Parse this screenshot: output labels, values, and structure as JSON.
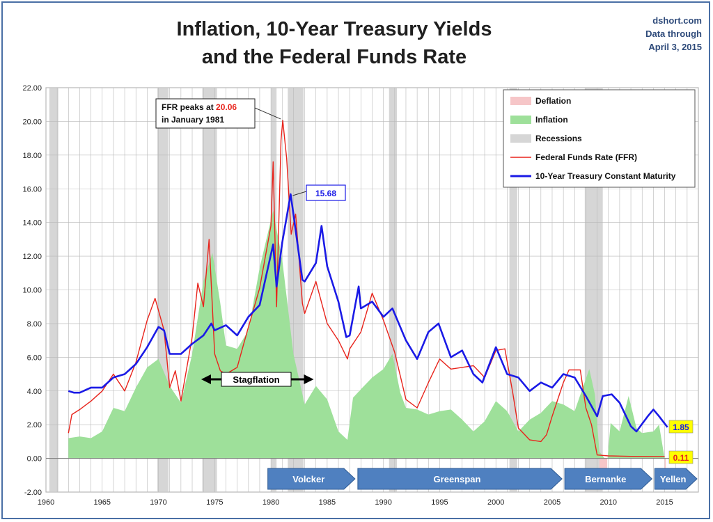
{
  "title_line1": "Inflation, 10-Year Treasury Yields",
  "title_line2": "and the Federal Funds Rate",
  "source": {
    "site": "dshort.com",
    "line2": "Data through",
    "line3": "April 3, 2015"
  },
  "colors": {
    "ffr": "#e8241c",
    "treasury": "#1a1ae6",
    "inflation": "#9ee09a",
    "deflation": "#f6c6c8",
    "recession": "#d6d6d6",
    "arrow": "#4f80c0"
  },
  "chart_data": {
    "type": "line",
    "xlim": [
      1960,
      2018
    ],
    "ylim": [
      -2,
      22
    ],
    "grid": true,
    "x_ticks": [
      "1960",
      "1965",
      "1970",
      "1975",
      "1980",
      "1985",
      "1990",
      "1995",
      "2000",
      "2005",
      "2010",
      "2015"
    ],
    "y_ticks": [
      "-2.00",
      "0.00",
      "2.00",
      "4.00",
      "6.00",
      "8.00",
      "10.00",
      "12.00",
      "14.00",
      "16.00",
      "18.00",
      "20.00",
      "22.00"
    ],
    "legend_position": "top-right",
    "legend": [
      {
        "label": "Deflation",
        "kind": "box",
        "color": "#f6c6c8"
      },
      {
        "label": "Inflation",
        "kind": "box",
        "color": "#9ee09a"
      },
      {
        "label": "Recessions",
        "kind": "box",
        "color": "#d6d6d6"
      },
      {
        "label": "Federal Funds Rate (FFR)",
        "kind": "line",
        "color": "#e8241c"
      },
      {
        "label": "10-Year Treasury Constant Maturity",
        "kind": "line",
        "color": "#1a1ae6"
      }
    ],
    "recessions": [
      [
        1960.3,
        1961.1
      ],
      [
        1969.9,
        1970.9
      ],
      [
        1973.9,
        1975.2
      ],
      [
        1980.0,
        1980.5
      ],
      [
        1981.5,
        1982.9
      ],
      [
        1990.5,
        1991.2
      ],
      [
        2001.2,
        2001.9
      ],
      [
        2007.9,
        2009.5
      ]
    ],
    "deflation": [
      [
        2009.2,
        2009.9
      ],
      [
        2015.0,
        2015.1
      ]
    ],
    "inflation": [
      [
        1962.0,
        1.2
      ],
      [
        1963.0,
        1.3
      ],
      [
        1964.0,
        1.2
      ],
      [
        1965.0,
        1.6
      ],
      [
        1966.0,
        3.0
      ],
      [
        1967.0,
        2.8
      ],
      [
        1968.0,
        4.2
      ],
      [
        1969.0,
        5.4
      ],
      [
        1970.0,
        5.9
      ],
      [
        1971.0,
        4.3
      ],
      [
        1972.0,
        3.3
      ],
      [
        1973.0,
        6.2
      ],
      [
        1974.0,
        10.5
      ],
      [
        1974.8,
        12.2
      ],
      [
        1975.5,
        9.2
      ],
      [
        1976.0,
        6.7
      ],
      [
        1977.0,
        6.5
      ],
      [
        1978.0,
        7.6
      ],
      [
        1979.0,
        11.3
      ],
      [
        1980.2,
        14.7
      ],
      [
        1981.0,
        11.8
      ],
      [
        1982.0,
        6.2
      ],
      [
        1983.0,
        3.2
      ],
      [
        1984.0,
        4.3
      ],
      [
        1985.0,
        3.5
      ],
      [
        1986.0,
        1.6
      ],
      [
        1986.8,
        1.1
      ],
      [
        1987.3,
        3.6
      ],
      [
        1988.0,
        4.1
      ],
      [
        1989.0,
        4.8
      ],
      [
        1990.0,
        5.3
      ],
      [
        1990.8,
        6.2
      ],
      [
        1991.5,
        3.9
      ],
      [
        1992.0,
        3.0
      ],
      [
        1993.0,
        2.9
      ],
      [
        1994.0,
        2.6
      ],
      [
        1995.0,
        2.8
      ],
      [
        1996.0,
        2.9
      ],
      [
        1997.0,
        2.3
      ],
      [
        1998.0,
        1.6
      ],
      [
        1999.0,
        2.2
      ],
      [
        2000.0,
        3.4
      ],
      [
        2001.0,
        2.8
      ],
      [
        2002.0,
        1.6
      ],
      [
        2003.0,
        2.3
      ],
      [
        2004.0,
        2.7
      ],
      [
        2005.0,
        3.4
      ],
      [
        2006.0,
        3.2
      ],
      [
        2007.0,
        2.8
      ],
      [
        2008.3,
        5.3
      ],
      [
        2008.8,
        3.8
      ],
      [
        2009.2,
        0.4
      ],
      [
        2009.9,
        -0.2
      ],
      [
        2010.2,
        2.1
      ],
      [
        2011.0,
        1.6
      ],
      [
        2011.8,
        3.7
      ],
      [
        2012.5,
        1.8
      ],
      [
        2013.0,
        1.5
      ],
      [
        2014.0,
        1.6
      ],
      [
        2014.5,
        2.0
      ],
      [
        2015.0,
        0.0
      ]
    ],
    "series": [
      {
        "name": "Federal Funds Rate (FFR)",
        "color": "#e8241c",
        "points": [
          [
            1962.0,
            1.5
          ],
          [
            1962.3,
            2.6
          ],
          [
            1963.0,
            2.9
          ],
          [
            1964.0,
            3.4
          ],
          [
            1965.0,
            4.0
          ],
          [
            1966.0,
            5.0
          ],
          [
            1967.0,
            4.0
          ],
          [
            1968.0,
            5.7
          ],
          [
            1969.0,
            8.2
          ],
          [
            1969.7,
            9.5
          ],
          [
            1970.5,
            7.6
          ],
          [
            1971.0,
            4.2
          ],
          [
            1971.5,
            5.2
          ],
          [
            1972.0,
            3.4
          ],
          [
            1973.0,
            7.2
          ],
          [
            1973.5,
            10.4
          ],
          [
            1974.0,
            9.0
          ],
          [
            1974.5,
            13.0
          ],
          [
            1975.0,
            6.2
          ],
          [
            1975.5,
            5.2
          ],
          [
            1976.0,
            5.0
          ],
          [
            1977.0,
            5.4
          ],
          [
            1978.0,
            7.8
          ],
          [
            1979.0,
            10.1
          ],
          [
            1980.0,
            13.8
          ],
          [
            1980.2,
            17.6
          ],
          [
            1980.5,
            9.0
          ],
          [
            1980.9,
            18.9
          ],
          [
            1981.05,
            20.06
          ],
          [
            1981.4,
            17.8
          ],
          [
            1981.8,
            13.3
          ],
          [
            1982.2,
            14.5
          ],
          [
            1982.8,
            9.2
          ],
          [
            1983.0,
            8.6
          ],
          [
            1984.0,
            10.5
          ],
          [
            1985.0,
            8.0
          ],
          [
            1986.0,
            7.0
          ],
          [
            1986.8,
            5.9
          ],
          [
            1987.0,
            6.5
          ],
          [
            1988.0,
            7.5
          ],
          [
            1989.0,
            9.8
          ],
          [
            1990.0,
            8.2
          ],
          [
            1991.0,
            6.3
          ],
          [
            1992.0,
            3.5
          ],
          [
            1993.0,
            3.0
          ],
          [
            1994.0,
            4.5
          ],
          [
            1995.0,
            5.9
          ],
          [
            1996.0,
            5.3
          ],
          [
            1998.0,
            5.5
          ],
          [
            1999.0,
            4.8
          ],
          [
            2000.0,
            6.4
          ],
          [
            2000.8,
            6.5
          ],
          [
            2001.5,
            3.9
          ],
          [
            2002.0,
            1.8
          ],
          [
            2003.0,
            1.1
          ],
          [
            2004.0,
            1.0
          ],
          [
            2004.5,
            1.4
          ],
          [
            2005.0,
            2.5
          ],
          [
            2006.0,
            4.5
          ],
          [
            2006.5,
            5.25
          ],
          [
            2007.5,
            5.25
          ],
          [
            2008.0,
            3.0
          ],
          [
            2008.5,
            2.0
          ],
          [
            2009.0,
            0.2
          ],
          [
            2010.0,
            0.15
          ],
          [
            2012.0,
            0.12
          ],
          [
            2015.0,
            0.11
          ]
        ]
      },
      {
        "name": "10-Year Treasury Constant Maturity",
        "color": "#1a1ae6",
        "points": [
          [
            1962.0,
            4.0
          ],
          [
            1962.5,
            3.9
          ],
          [
            1963.0,
            3.9
          ],
          [
            1964.0,
            4.2
          ],
          [
            1965.0,
            4.2
          ],
          [
            1966.0,
            4.8
          ],
          [
            1967.0,
            5.0
          ],
          [
            1968.0,
            5.6
          ],
          [
            1969.0,
            6.6
          ],
          [
            1970.0,
            7.8
          ],
          [
            1970.5,
            7.6
          ],
          [
            1971.0,
            6.2
          ],
          [
            1972.0,
            6.2
          ],
          [
            1973.0,
            6.8
          ],
          [
            1974.0,
            7.3
          ],
          [
            1974.7,
            8.0
          ],
          [
            1975.0,
            7.6
          ],
          [
            1976.0,
            7.9
          ],
          [
            1977.0,
            7.3
          ],
          [
            1978.0,
            8.4
          ],
          [
            1979.0,
            9.1
          ],
          [
            1980.2,
            12.7
          ],
          [
            1980.5,
            10.2
          ],
          [
            1981.0,
            12.8
          ],
          [
            1981.75,
            15.68
          ],
          [
            1982.0,
            14.5
          ],
          [
            1982.8,
            10.6
          ],
          [
            1983.0,
            10.5
          ],
          [
            1984.0,
            11.6
          ],
          [
            1984.5,
            13.8
          ],
          [
            1985.0,
            11.4
          ],
          [
            1986.0,
            9.3
          ],
          [
            1986.7,
            7.2
          ],
          [
            1987.0,
            7.3
          ],
          [
            1987.8,
            10.2
          ],
          [
            1988.0,
            8.9
          ],
          [
            1989.0,
            9.3
          ],
          [
            1990.0,
            8.4
          ],
          [
            1990.8,
            8.9
          ],
          [
            1992.0,
            7.0
          ],
          [
            1993.0,
            5.9
          ],
          [
            1994.0,
            7.5
          ],
          [
            1994.9,
            8.0
          ],
          [
            1996.0,
            6.0
          ],
          [
            1997.0,
            6.4
          ],
          [
            1998.0,
            5.0
          ],
          [
            1998.8,
            4.5
          ],
          [
            2000.0,
            6.6
          ],
          [
            2001.0,
            5.0
          ],
          [
            2002.0,
            4.8
          ],
          [
            2003.0,
            4.0
          ],
          [
            2004.0,
            4.5
          ],
          [
            2005.0,
            4.2
          ],
          [
            2006.0,
            5.0
          ],
          [
            2007.0,
            4.8
          ],
          [
            2008.0,
            3.7
          ],
          [
            2009.0,
            2.5
          ],
          [
            2009.5,
            3.7
          ],
          [
            2010.3,
            3.8
          ],
          [
            2011.0,
            3.3
          ],
          [
            2012.0,
            1.9
          ],
          [
            2012.5,
            1.6
          ],
          [
            2013.5,
            2.5
          ],
          [
            2014.0,
            2.9
          ],
          [
            2014.5,
            2.5
          ],
          [
            2015.25,
            1.85
          ]
        ]
      }
    ],
    "annotations": {
      "ffr_peak_prefix": "FFR peaks at ",
      "ffr_peak_value": "20.06",
      "ffr_peak_date": "in January 1981",
      "treasury_peak": "15.68",
      "stagflation": "Stagflation",
      "end_treasury": "1.85",
      "end_ffr": "0.11"
    },
    "chairs": [
      {
        "label": "Volcker",
        "start": 1979.6,
        "end": 1987.6
      },
      {
        "label": "Greenspan",
        "start": 1987.6,
        "end": 2006.0
      },
      {
        "label": "Bernanke",
        "start": 2006.0,
        "end": 2014.0
      },
      {
        "label": "Yellen",
        "start": 2014.0,
        "end": 2018.0
      }
    ]
  }
}
